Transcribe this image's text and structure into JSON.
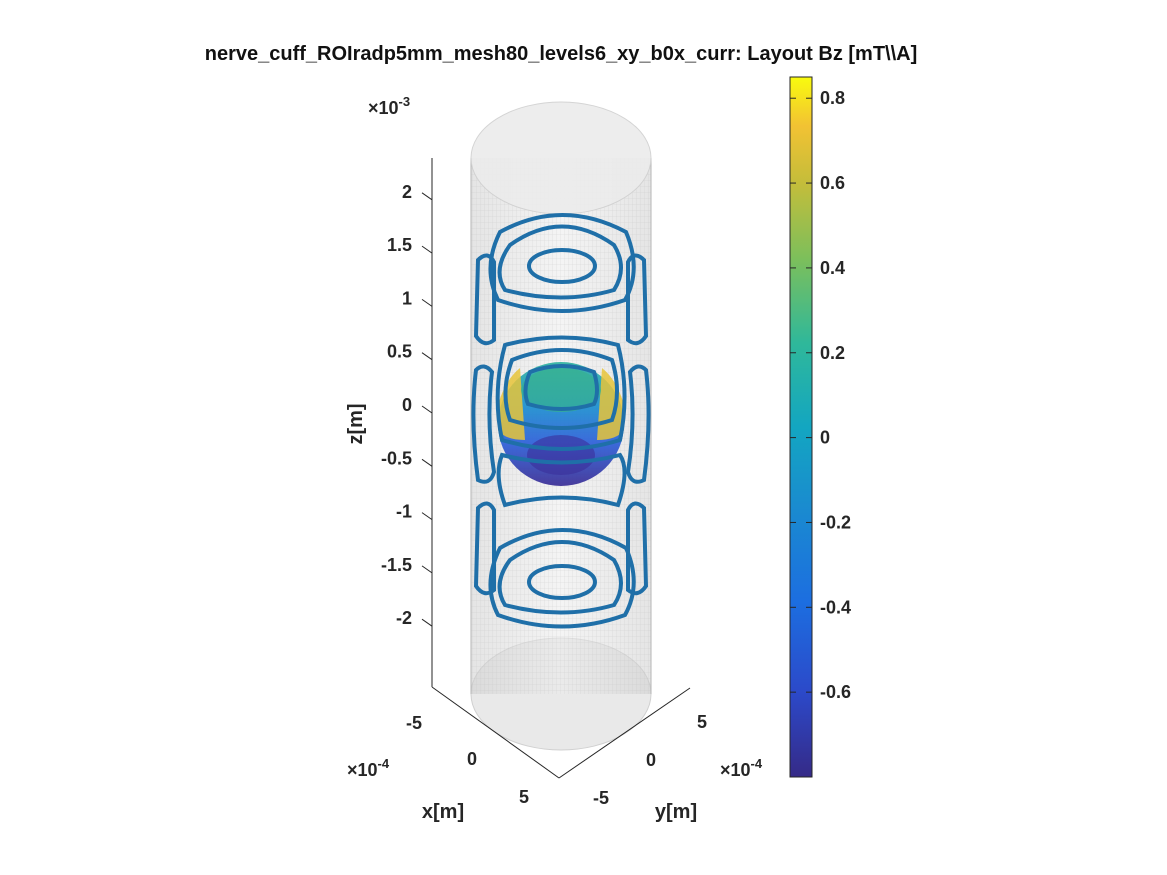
{
  "chart_data": {
    "type": "3d-surface-contour",
    "title": "nerve_cuff_ROIradp5mm_mesh80_levels6_xy_b0x_curr: Layout Bz [mT\\\\A]",
    "xlabel": "x[m]",
    "ylabel": "y[m]",
    "zlabel": "z[m]",
    "x_exponent_base": "×10",
    "x_exponent_power": "-4",
    "y_exponent_base": "×10",
    "y_exponent_power": "-4",
    "z_exponent_base": "×10",
    "z_exponent_power": "-3",
    "x_ticks": [
      "-5",
      "0",
      "5"
    ],
    "x_tick_values": [
      -5,
      0,
      5
    ],
    "y_ticks": [
      "-5",
      "0",
      "5"
    ],
    "y_tick_values": [
      -5,
      0,
      5
    ],
    "z_ticks": [
      "2",
      "1.5",
      "1",
      "0.5",
      "0",
      "-0.5",
      "-1",
      "-1.5",
      "-2"
    ],
    "z_tick_values": [
      2,
      1.5,
      1,
      0.5,
      0,
      -0.5,
      -1,
      -1.5,
      -2
    ],
    "zlim": [
      -2.5,
      2.5
    ],
    "colorbar": {
      "ticks": [
        "0.8",
        "0.6",
        "0.4",
        "0.2",
        "0",
        "-0.2",
        "-0.4",
        "-0.6"
      ],
      "tick_values": [
        0.8,
        0.6,
        0.4,
        0.2,
        0,
        -0.2,
        -0.4,
        -0.6
      ],
      "range": [
        -0.8,
        0.85
      ],
      "colormap": "parula"
    },
    "contour_color": "#1f6fa8",
    "cylinder_color": "#d8d8d8",
    "grid": false
  }
}
